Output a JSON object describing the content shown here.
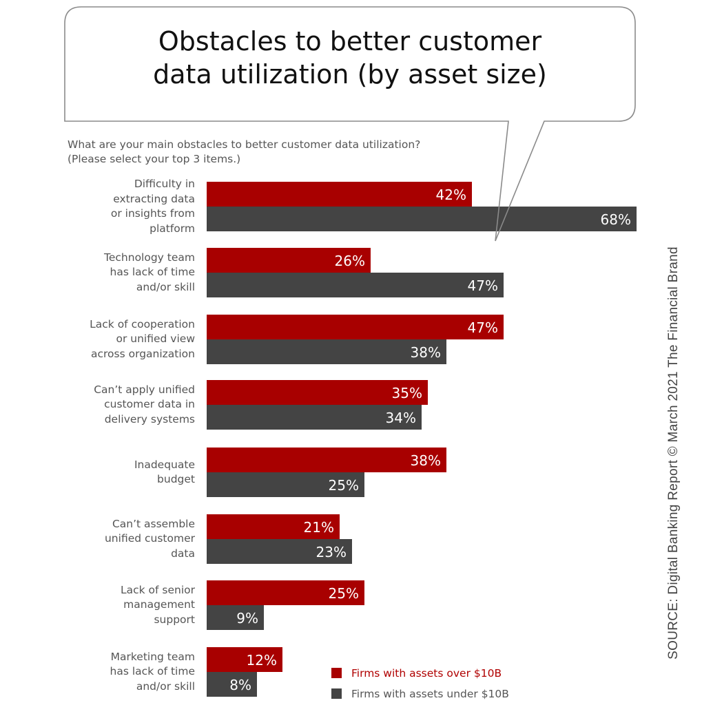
{
  "title_lines": [
    "Obstacles to better customer",
    "data utilization (by asset size)"
  ],
  "subtitle": "What are your main obstacles to better customer data utilization? (Please select your top 3 items.)",
  "source": "SOURCE: Digital Banking Report © March 2021 The Financial Brand",
  "colors": {
    "over_10b": "#A80000",
    "under_10b": "#444444",
    "label_text": "#555555",
    "bubble_stroke": "#8a8a8a"
  },
  "legend": [
    {
      "label": "Firms with assets over $10B",
      "color": "#A80000",
      "text_color": "#B00000"
    },
    {
      "label": "Firms with assets under $10B",
      "color": "#444444",
      "text_color": "#555555"
    }
  ],
  "chart_data": {
    "type": "bar",
    "orientation": "horizontal",
    "title": "Obstacles to better customer data utilization (by asset size)",
    "subtitle": "What are your main obstacles to better customer data utilization? (Please select your top 3 items.)",
    "xlabel": "",
    "ylabel": "",
    "xlim": [
      0,
      68
    ],
    "grid": false,
    "legend_position": "bottom-right",
    "categories": [
      [
        "Difficulty in",
        "extracting data",
        "or insights from",
        "platform"
      ],
      [
        "Technology team",
        "has lack of time",
        "and/or skill"
      ],
      [
        "Lack of cooperation",
        "or unified view",
        "across organization"
      ],
      [
        "Can’t apply unified",
        "customer data in",
        "delivery systems"
      ],
      [
        "Inadequate",
        "budget"
      ],
      [
        "Can’t assemble",
        "unified customer",
        "data"
      ],
      [
        "Lack of senior",
        "management",
        "support"
      ],
      [
        "Marketing team",
        "has lack of time",
        "and/or skill"
      ]
    ],
    "series": [
      {
        "name": "Firms with assets over $10B",
        "values": [
          42,
          26,
          47,
          35,
          38,
          21,
          25,
          12
        ],
        "labels": [
          "42%",
          "26%",
          "47%",
          "35%",
          "38%",
          "21%",
          "25%",
          "12%"
        ]
      },
      {
        "name": "Firms with assets under $10B",
        "values": [
          68,
          47,
          38,
          34,
          25,
          23,
          9,
          8
        ],
        "labels": [
          "68%",
          "47%",
          "38%",
          "34%",
          "25%",
          "23%",
          "9%",
          "8%"
        ]
      }
    ],
    "value_suffix": "%"
  }
}
